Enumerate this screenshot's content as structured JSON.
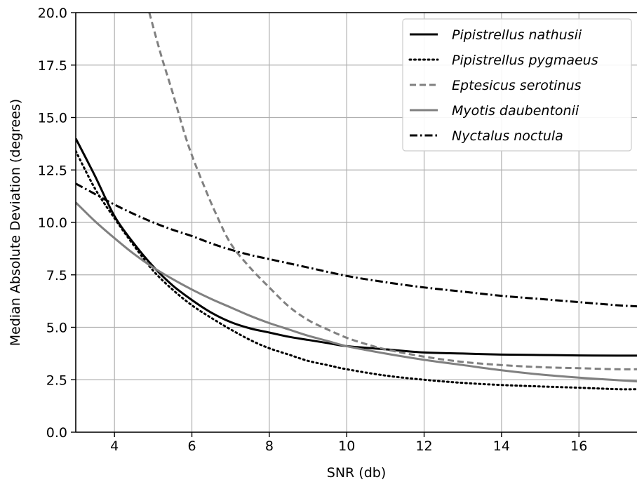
{
  "chart_data": {
    "type": "line",
    "xlabel": "SNR (db)",
    "ylabel": "Median Absolute Deviation (degrees)",
    "xlim": [
      3,
      17.5
    ],
    "ylim": [
      0,
      20
    ],
    "x_ticks": [
      4,
      6,
      8,
      10,
      12,
      14,
      16
    ],
    "y_ticks": [
      0.0,
      2.5,
      5.0,
      7.5,
      10.0,
      12.5,
      15.0,
      17.5,
      20.0
    ],
    "x_tick_labels": [
      "4",
      "6",
      "8",
      "10",
      "12",
      "14",
      "16"
    ],
    "y_tick_labels": [
      "0.0",
      "2.5",
      "5.0",
      "7.5",
      "10.0",
      "12.5",
      "15.0",
      "17.5",
      "20.0"
    ],
    "grid": true,
    "legend_position": "top-right",
    "series": [
      {
        "name": "Pipistrellus nathusii",
        "color": "#000000",
        "dash": "solid",
        "x": [
          3.0,
          3.5,
          4.0,
          4.5,
          5.0,
          5.5,
          6.0,
          6.5,
          7.0,
          7.5,
          8.0,
          8.5,
          9.0,
          9.5,
          10.0,
          11.0,
          12.0,
          13.0,
          14.0,
          15.0,
          16.0,
          17.0,
          17.5
        ],
        "y": [
          14.0,
          12.2,
          10.3,
          9.0,
          7.9,
          7.0,
          6.3,
          5.7,
          5.25,
          4.95,
          4.75,
          4.55,
          4.4,
          4.25,
          4.1,
          3.95,
          3.8,
          3.75,
          3.7,
          3.68,
          3.66,
          3.65,
          3.65
        ]
      },
      {
        "name": "Pipistrellus pygmaeus",
        "color": "#000000",
        "dash": "dotted",
        "x": [
          3.0,
          3.5,
          4.0,
          4.5,
          5.0,
          5.5,
          6.0,
          6.5,
          7.0,
          7.5,
          8.0,
          8.5,
          9.0,
          9.5,
          10.0,
          11.0,
          12.0,
          13.0,
          14.0,
          15.0,
          16.0,
          17.0,
          17.5
        ],
        "y": [
          13.4,
          11.6,
          10.2,
          8.9,
          7.7,
          6.8,
          6.05,
          5.45,
          4.9,
          4.4,
          4.0,
          3.7,
          3.4,
          3.2,
          3.0,
          2.7,
          2.5,
          2.35,
          2.25,
          2.18,
          2.12,
          2.05,
          2.05
        ]
      },
      {
        "name": "Eptesicus serotinus",
        "color": "#808080",
        "dash": "dashed",
        "x": [
          4.9,
          5.2,
          5.5,
          5.8,
          6.0,
          6.3,
          6.6,
          7.0,
          7.5,
          8.0,
          8.5,
          9.0,
          9.5,
          10.0,
          10.5,
          11.0,
          12.0,
          13.0,
          14.0,
          15.0,
          16.0,
          17.0,
          17.5
        ],
        "y": [
          20.0,
          18.0,
          16.2,
          14.3,
          13.2,
          11.8,
          10.5,
          9.0,
          7.85,
          6.9,
          6.0,
          5.35,
          4.9,
          4.5,
          4.2,
          3.95,
          3.6,
          3.35,
          3.2,
          3.1,
          3.05,
          3.0,
          3.0
        ]
      },
      {
        "name": "Myotis daubentonii",
        "color": "#808080",
        "dash": "solid",
        "x": [
          3.0,
          3.5,
          4.0,
          4.5,
          5.0,
          5.5,
          6.0,
          6.5,
          7.0,
          7.5,
          8.0,
          8.5,
          9.0,
          9.5,
          10.0,
          11.0,
          12.0,
          13.0,
          14.0,
          15.0,
          16.0,
          17.0,
          17.5
        ],
        "y": [
          10.95,
          10.05,
          9.25,
          8.5,
          7.85,
          7.3,
          6.8,
          6.35,
          5.95,
          5.55,
          5.2,
          4.9,
          4.6,
          4.35,
          4.1,
          3.75,
          3.45,
          3.2,
          2.95,
          2.75,
          2.6,
          2.48,
          2.42
        ]
      },
      {
        "name": "Nyctalus noctula",
        "color": "#000000",
        "dash": "dashdot",
        "x": [
          3.0,
          3.5,
          4.0,
          4.5,
          5.0,
          5.5,
          6.0,
          6.5,
          7.0,
          7.5,
          8.0,
          9.0,
          10.0,
          11.0,
          12.0,
          13.0,
          14.0,
          15.0,
          16.0,
          17.0,
          17.5
        ],
        "y": [
          11.85,
          11.35,
          10.85,
          10.4,
          10.0,
          9.65,
          9.35,
          9.0,
          8.7,
          8.45,
          8.25,
          7.85,
          7.45,
          7.15,
          6.9,
          6.7,
          6.5,
          6.35,
          6.2,
          6.05,
          6.0
        ]
      }
    ]
  }
}
